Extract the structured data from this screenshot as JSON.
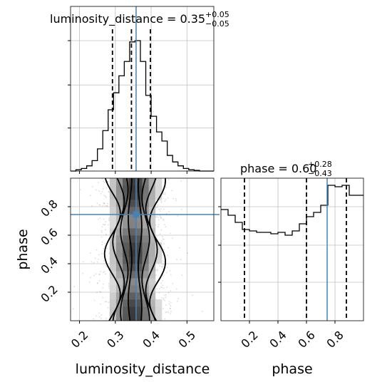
{
  "chart_data": {
    "type": "corner",
    "parameters": [
      "luminosity_distance",
      "phase"
    ],
    "truths": {
      "luminosity_distance": 0.358,
      "phase": 0.745
    },
    "panels": [
      {
        "kind": "histogram",
        "parameter": "luminosity_distance",
        "title": {
          "base": "luminosity_distance = 0.35",
          "plus": "+0.05",
          "minus": "−0.05"
        },
        "xlim": [
          0.175,
          0.575
        ],
        "bin_edges": [
          0.175,
          0.19,
          0.205,
          0.22,
          0.235,
          0.25,
          0.265,
          0.28,
          0.295,
          0.31,
          0.325,
          0.34,
          0.355,
          0.37,
          0.385,
          0.4,
          0.415,
          0.43,
          0.445,
          0.46,
          0.475,
          0.49,
          0.505,
          0.52,
          0.535,
          0.55,
          0.565,
          0.575
        ],
        "counts_relative": [
          0.0,
          0.01,
          0.02,
          0.04,
          0.08,
          0.17,
          0.31,
          0.47,
          0.6,
          0.73,
          0.84,
          0.99,
          1.0,
          0.84,
          0.58,
          0.42,
          0.3,
          0.23,
          0.12,
          0.07,
          0.04,
          0.02,
          0.01,
          0.005,
          0.0,
          0.0,
          0.0
        ],
        "quantiles": [
          0.292,
          0.345,
          0.398
        ],
        "truth": 0.358
      },
      {
        "kind": "histogram",
        "parameter": "phase",
        "title": {
          "base": "phase = 0.60",
          "plus": "+0.28",
          "minus": "−0.43"
        },
        "xlim": [
          0.0,
          1.0
        ],
        "bin_edges": [
          0.0,
          0.05,
          0.1,
          0.15,
          0.2,
          0.25,
          0.3,
          0.35,
          0.4,
          0.45,
          0.5,
          0.55,
          0.6,
          0.65,
          0.7,
          0.75,
          0.8,
          0.85,
          0.9,
          0.95,
          1.0
        ],
        "counts_relative": [
          0.78,
          0.74,
          0.69,
          0.64,
          0.63,
          0.62,
          0.62,
          0.61,
          0.62,
          0.6,
          0.63,
          0.68,
          0.73,
          0.76,
          0.81,
          0.95,
          0.94,
          0.95,
          0.88,
          0.88
        ],
        "quantiles": [
          0.165,
          0.6,
          0.88
        ],
        "truth": 0.745
      },
      {
        "kind": "2d-density",
        "x_parameter": "luminosity_distance",
        "y_parameter": "phase",
        "xlim": [
          0.175,
          0.575
        ],
        "ylim": [
          0.0,
          1.0
        ],
        "truth": [
          0.358,
          0.745
        ],
        "contour_halfwidths": [
          0.014,
          0.03,
          0.046,
          0.063
        ]
      }
    ],
    "xticks": {
      "luminosity_distance": [
        {
          "v": 0.2,
          "t": "0.2"
        },
        {
          "v": 0.3,
          "t": "0.3"
        },
        {
          "v": 0.4,
          "t": "0.4"
        },
        {
          "v": 0.5,
          "t": "0.5"
        }
      ],
      "phase": [
        {
          "v": 0.2,
          "t": "0.2"
        },
        {
          "v": 0.4,
          "t": "0.4"
        },
        {
          "v": 0.6,
          "t": "0.6"
        },
        {
          "v": 0.8,
          "t": "0.8"
        }
      ]
    },
    "yticks": {
      "phase": [
        {
          "v": 0.2,
          "t": "0.2"
        },
        {
          "v": 0.4,
          "t": "0.4"
        },
        {
          "v": 0.6,
          "t": "0.6"
        },
        {
          "v": 0.8,
          "t": "0.8"
        }
      ]
    },
    "xlabels": [
      "luminosity_distance",
      "phase"
    ],
    "ylabel": "phase",
    "grid": true,
    "colors": {
      "truth": "#4682b4",
      "hist": "#000000",
      "grid": "#c0c0c0",
      "points": "#808080"
    }
  }
}
